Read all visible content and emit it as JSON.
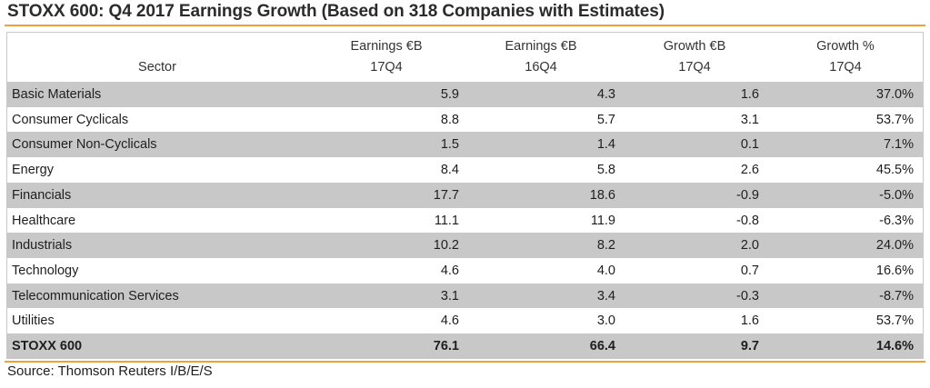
{
  "title": "STOXX 600: Q4 2017 Earnings Growth (Based on 318 Companies with Estimates)",
  "columns": [
    {
      "line1": "",
      "line2": "Sector"
    },
    {
      "line1": "Earnings €B",
      "line2": "17Q4"
    },
    {
      "line1": "Earnings €B",
      "line2": "16Q4"
    },
    {
      "line1": "Growth €B",
      "line2": "17Q4"
    },
    {
      "line1": "Growth %",
      "line2": "17Q4"
    }
  ],
  "rows": [
    {
      "sector": "Basic Materials",
      "earn_17q4": "5.9",
      "earn_16q4": "4.3",
      "growth_eur": "1.6",
      "growth_pct": "37.0%"
    },
    {
      "sector": "Consumer Cyclicals",
      "earn_17q4": "8.8",
      "earn_16q4": "5.7",
      "growth_eur": "3.1",
      "growth_pct": "53.7%"
    },
    {
      "sector": "Consumer Non-Cyclicals",
      "earn_17q4": "1.5",
      "earn_16q4": "1.4",
      "growth_eur": "0.1",
      "growth_pct": "7.1%"
    },
    {
      "sector": "Energy",
      "earn_17q4": "8.4",
      "earn_16q4": "5.8",
      "growth_eur": "2.6",
      "growth_pct": "45.5%"
    },
    {
      "sector": "Financials",
      "earn_17q4": "17.7",
      "earn_16q4": "18.6",
      "growth_eur": "-0.9",
      "growth_pct": "-5.0%"
    },
    {
      "sector": "Healthcare",
      "earn_17q4": "11.1",
      "earn_16q4": "11.9",
      "growth_eur": "-0.8",
      "growth_pct": "-6.3%"
    },
    {
      "sector": "Industrials",
      "earn_17q4": "10.2",
      "earn_16q4": "8.2",
      "growth_eur": "2.0",
      "growth_pct": "24.0%"
    },
    {
      "sector": "Technology",
      "earn_17q4": "4.6",
      "earn_16q4": "4.0",
      "growth_eur": "0.7",
      "growth_pct": "16.6%"
    },
    {
      "sector": "Telecommunication Services",
      "earn_17q4": "3.1",
      "earn_16q4": "3.4",
      "growth_eur": "-0.3",
      "growth_pct": "-8.7%"
    },
    {
      "sector": "Utilities",
      "earn_17q4": "4.6",
      "earn_16q4": "3.0",
      "growth_eur": "1.6",
      "growth_pct": "53.7%"
    }
  ],
  "total": {
    "sector": "STOXX 600",
    "earn_17q4": "76.1",
    "earn_16q4": "66.4",
    "growth_eur": "9.7",
    "growth_pct": "14.6%"
  },
  "source": "Source: Thomson Reuters I/B/E/S",
  "colors": {
    "accent_rule": "#f0a23a",
    "shaded_row": "#c8c8c8"
  }
}
